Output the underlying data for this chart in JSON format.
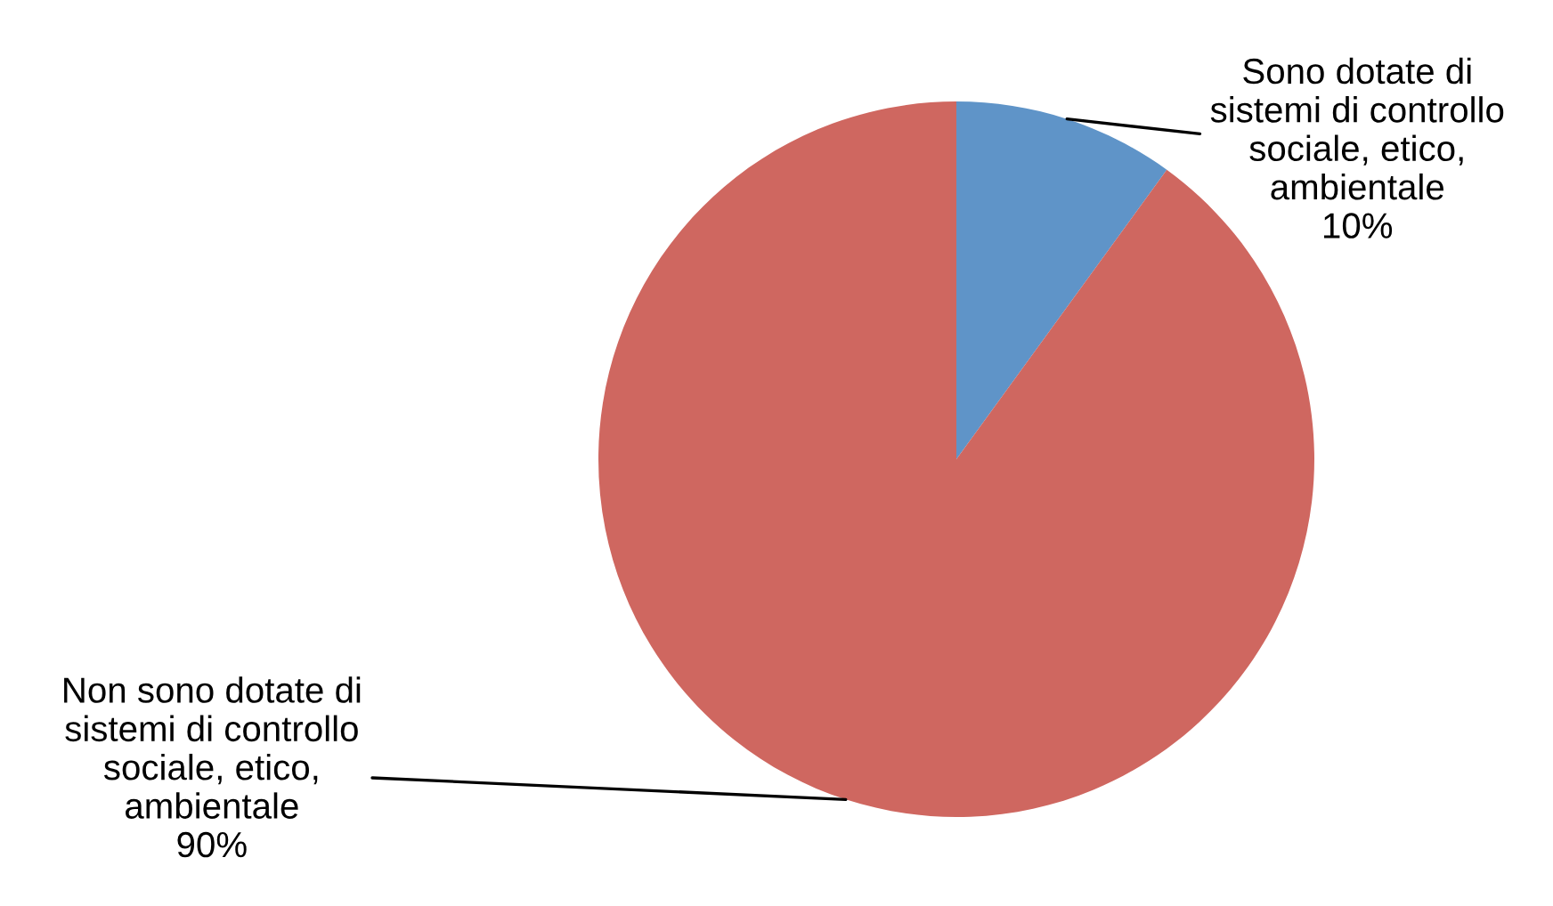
{
  "chart_data": {
    "type": "pie",
    "categories": [
      "Sono dotate di\nsistemi di controllo\nsociale, etico,\nambientale",
      "Non sono dotate di\nsistemi di controllo\nsociale, etico,\nambientale"
    ],
    "values": [
      10,
      90
    ],
    "value_labels": [
      "10%",
      "90%"
    ],
    "colors": [
      "#5f94c8",
      "#cf6760"
    ],
    "legend": false
  }
}
